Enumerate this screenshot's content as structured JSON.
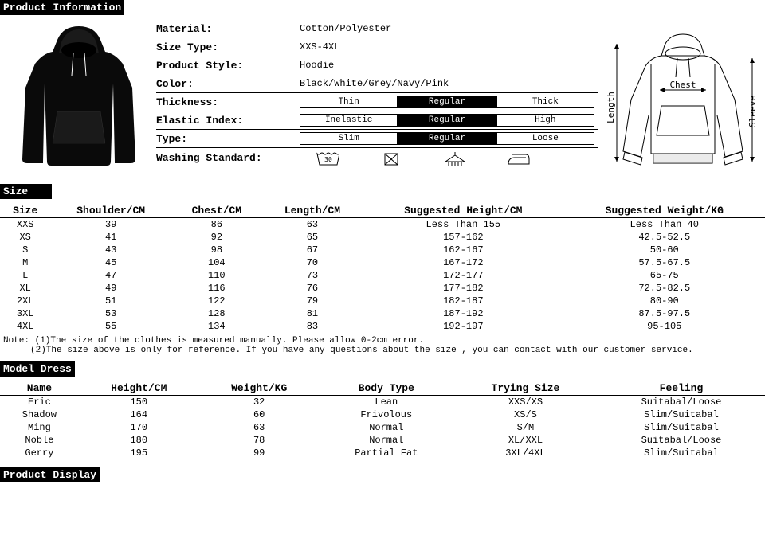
{
  "headers": {
    "product_info": "Product Information",
    "size": "Size",
    "model_dress": "Model Dress",
    "product_display": "Product Display"
  },
  "info": {
    "material_label": "Material:",
    "material_value": "Cotton/Polyester",
    "size_type_label": "Size Type:",
    "size_type_value": "XXS-4XL",
    "style_label": "Product Style:",
    "style_value": "Hoodie",
    "color_label": "Color:",
    "color_value": "Black/White/Grey/Navy/Pink",
    "thickness_label": "Thickness:",
    "elastic_label": "Elastic Index:",
    "type_label": "Type:",
    "washing_label": "Washing Standard:"
  },
  "thickness_opts": [
    "Thin",
    "Regular",
    "Thick"
  ],
  "elastic_opts": [
    "Inelastic",
    "Regular",
    "High"
  ],
  "type_opts": [
    "Slim",
    "Regular",
    "Loose"
  ],
  "selected_index": 1,
  "diagram_labels": {
    "chest": "Chest",
    "length": "Length",
    "sleeve": "Sleeve"
  },
  "size_columns": [
    "Size",
    "Shoulder/CM",
    "Chest/CM",
    "Length/CM",
    "Suggested Height/CM",
    "Suggested Weight/KG"
  ],
  "size_rows": [
    [
      "XXS",
      "39",
      "86",
      "63",
      "Less Than 155",
      "Less Than 40"
    ],
    [
      "XS",
      "41",
      "92",
      "65",
      "157-162",
      "42.5-52.5"
    ],
    [
      "S",
      "43",
      "98",
      "67",
      "162-167",
      "50-60"
    ],
    [
      "M",
      "45",
      "104",
      "70",
      "167-172",
      "57.5-67.5"
    ],
    [
      "L",
      "47",
      "110",
      "73",
      "172-177",
      "65-75"
    ],
    [
      "XL",
      "49",
      "116",
      "76",
      "177-182",
      "72.5-82.5"
    ],
    [
      "2XL",
      "51",
      "122",
      "79",
      "182-187",
      "80-90"
    ],
    [
      "3XL",
      "53",
      "128",
      "81",
      "187-192",
      "87.5-97.5"
    ],
    [
      "4XL",
      "55",
      "134",
      "83",
      "192-197",
      "95-105"
    ]
  ],
  "note1": "Note: (1)The size of the clothes is measured manually. Please allow 0-2cm error.",
  "note2": "(2)The size above is only for reference. If you have any questions about the size , you can contact with our customer service.",
  "model_columns": [
    "Name",
    "Height/CM",
    "Weight/KG",
    "Body Type",
    "Trying Size",
    "Feeling"
  ],
  "model_rows": [
    [
      "Eric",
      "150",
      "32",
      "Lean",
      "XXS/XS",
      "Suitabal/Loose"
    ],
    [
      "Shadow",
      "164",
      "60",
      "Frivolous",
      "XS/S",
      "Slim/Suitabal"
    ],
    [
      "Ming",
      "170",
      "63",
      "Normal",
      "S/M",
      "Slim/Suitabal"
    ],
    [
      "Noble",
      "180",
      "78",
      "Normal",
      "XL/XXL",
      "Suitabal/Loose"
    ],
    [
      "Gerry",
      "195",
      "99",
      "Partial Fat",
      "3XL/4XL",
      "Slim/Suitabal"
    ]
  ],
  "wash_temp": "30"
}
